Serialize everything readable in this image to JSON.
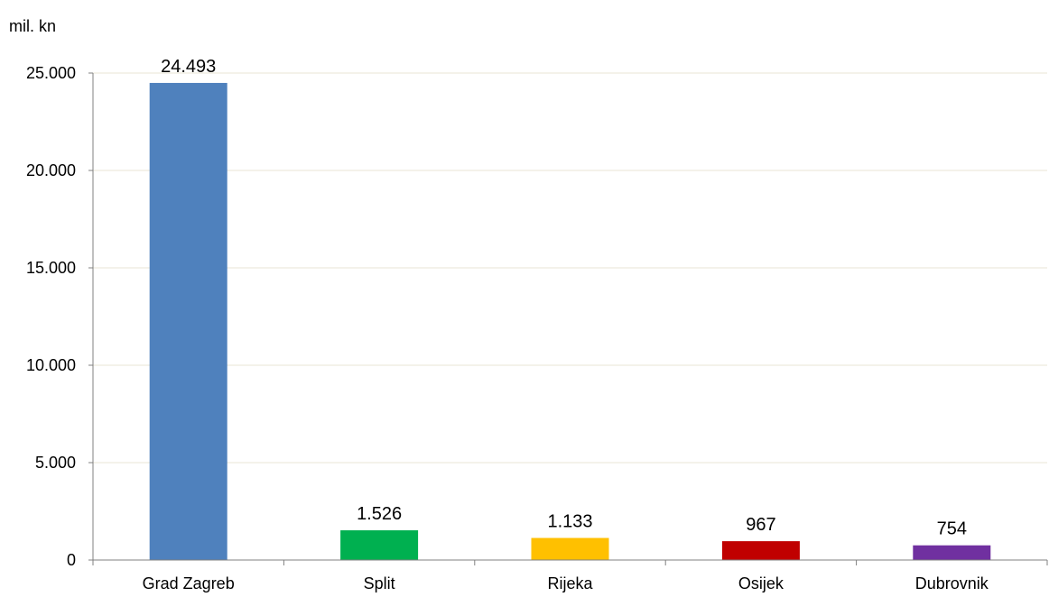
{
  "chart_data": {
    "type": "bar",
    "ylabel": "mil. kn",
    "categories": [
      "Grad Zagreb",
      "Split",
      "Rijeka",
      "Osijek",
      "Dubrovnik"
    ],
    "values": [
      24493,
      1526,
      1133,
      967,
      754
    ],
    "value_labels": [
      "24.493",
      "1.526",
      "1.133",
      "967",
      "754"
    ],
    "colors": [
      "#4F81BD",
      "#00B050",
      "#FFC000",
      "#C00000",
      "#7030A0"
    ],
    "ylim": [
      0,
      25000
    ],
    "yticks": [
      0,
      5000,
      10000,
      15000,
      20000,
      25000
    ],
    "ytick_labels": [
      "0",
      "5.000",
      "10.000",
      "15.000",
      "20.000",
      "25.000"
    ],
    "grid": true,
    "gridline_color": "#E8E4D4",
    "legend": "none"
  }
}
